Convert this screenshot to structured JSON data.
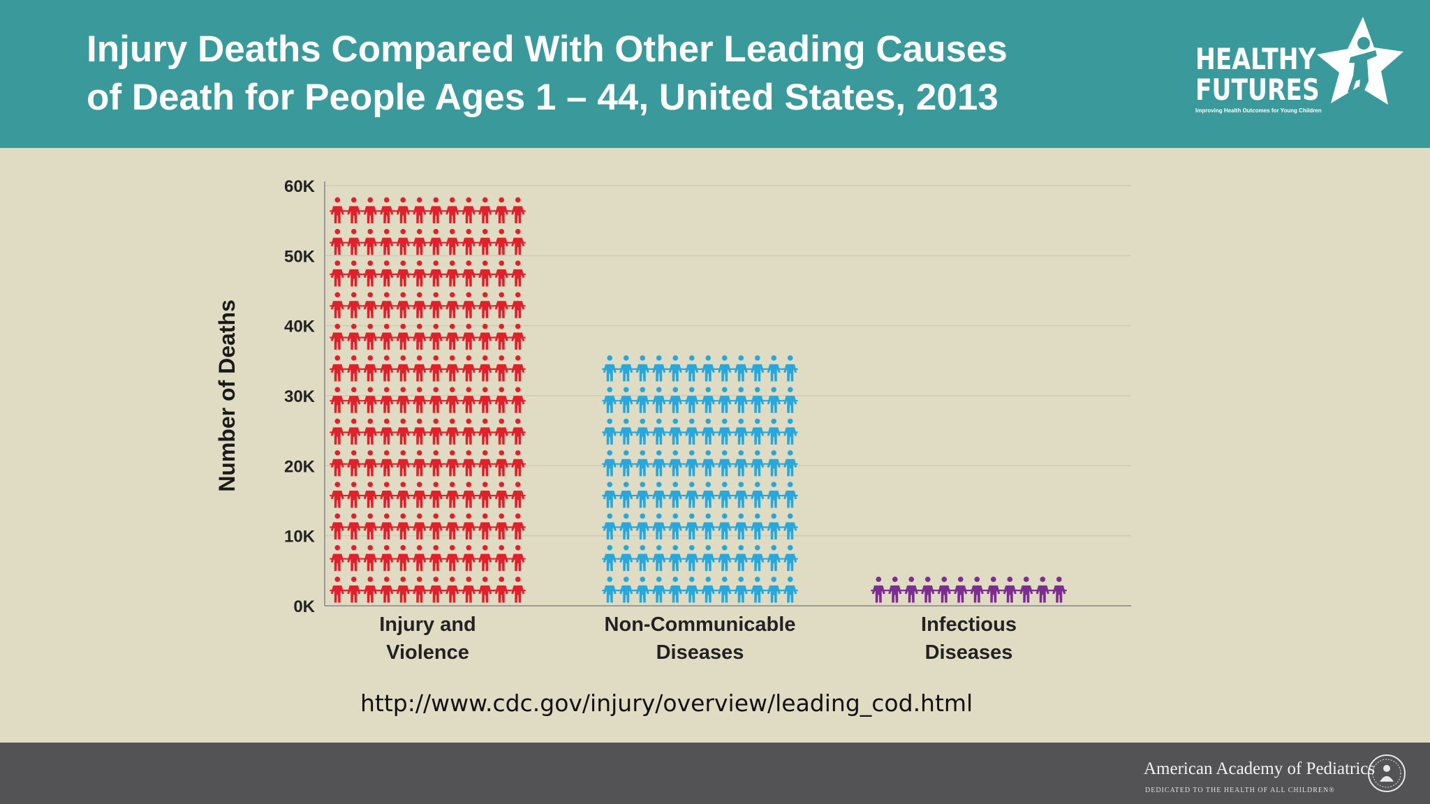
{
  "header": {
    "title_line1": "Injury Deaths Compared With Other Leading Causes",
    "title_line2": "of Death for People Ages 1 – 44, United States, 2013"
  },
  "logo": {
    "word1": "HEALTHY",
    "word2": "FUTURES",
    "tagline": "Improving Health Outcomes for Young Children"
  },
  "chart_data": {
    "type": "bar",
    "ylabel": "Number of Deaths",
    "xlabel": "",
    "ylim": [
      0,
      60000
    ],
    "yticks": [
      0,
      10000,
      20000,
      30000,
      40000,
      50000,
      60000
    ],
    "ytick_labels": [
      "0K",
      "10K",
      "20K",
      "30K",
      "40K",
      "50K",
      "60K"
    ],
    "grid": true,
    "categories": [
      [
        "Injury and",
        "Violence"
      ],
      [
        "Non-Communicable",
        "Diseases"
      ],
      [
        "Infectious",
        "Diseases"
      ]
    ],
    "values": [
      58000,
      35000,
      3800
    ],
    "colors": [
      "#e0212c",
      "#28a7dc",
      "#7c2d90"
    ],
    "people_per_row": 12,
    "icon": "person-icon"
  },
  "source_url": "http://www.cdc.gov/injury/overview/leading_cod.html",
  "footer": {
    "org_name": "American Academy of Pediatrics",
    "org_tagline": "DEDICATED TO THE HEALTH OF ALL CHILDREN®"
  }
}
